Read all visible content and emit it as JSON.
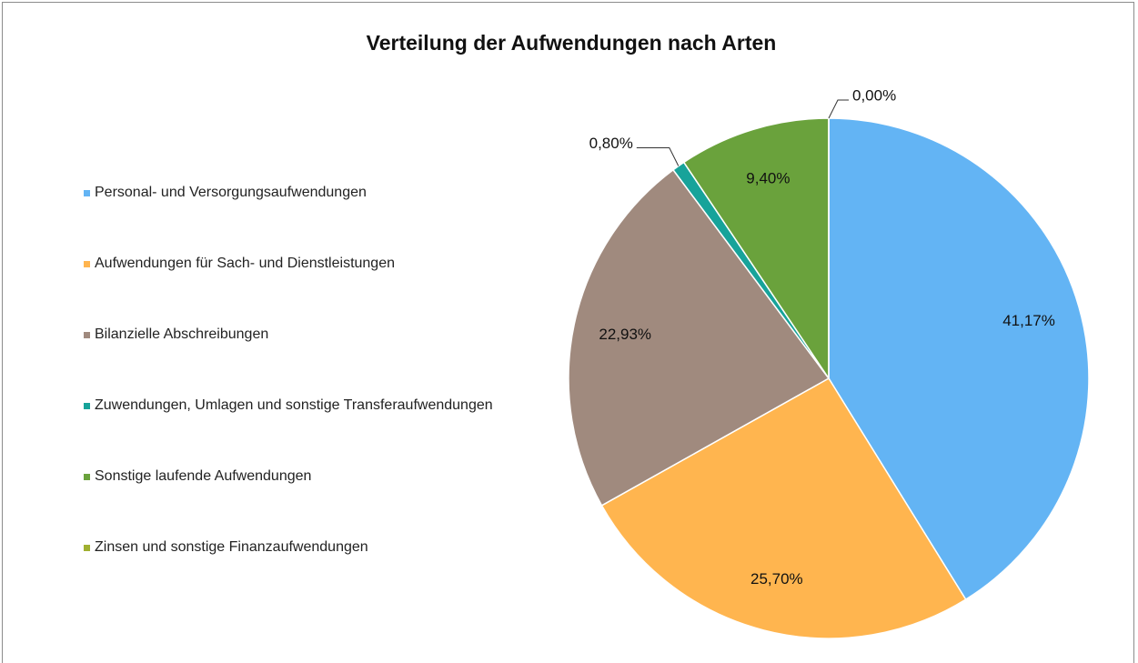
{
  "chart_data": {
    "type": "pie",
    "title": "Verteilung der Aufwendungen nach Arten",
    "categories": [
      "Personal- und Versorgungsaufwendungen",
      "Aufwendungen für Sach- und Dienstleistungen",
      "Bilanzielle Abschreibungen",
      "Zuwendungen, Umlagen und sonstige Transferaufwendungen",
      "Sonstige laufende Aufwendungen",
      "Zinsen und sonstige Finanzaufwendungen"
    ],
    "values": [
      41.17,
      25.7,
      22.93,
      0.8,
      9.4,
      0.0
    ],
    "value_labels": [
      "41,17%",
      "25,70%",
      "22,93%",
      "0,80%",
      "9,40%",
      "0,00%"
    ],
    "colors": [
      "#63b4f4",
      "#ffb54f",
      "#a08a7e",
      "#17a39a",
      "#6aa23c",
      "#a0b030"
    ],
    "legend": "left"
  }
}
